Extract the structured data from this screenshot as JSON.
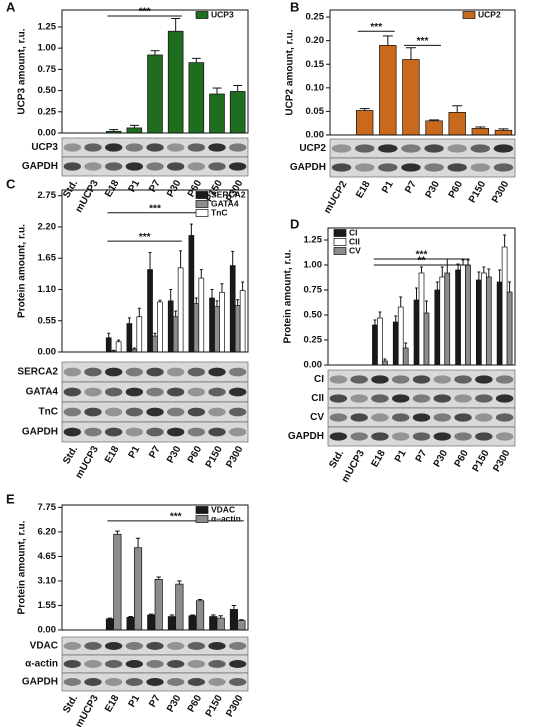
{
  "chart_data": [
    {
      "type": "bar",
      "panel": "A",
      "ylabel": "UCP3 amount, r.u.",
      "ylim": [
        0,
        1.45
      ],
      "yticks": [
        {
          "value": 0,
          "label": "0.00"
        },
        {
          "value": 0.25,
          "label": "0.25"
        },
        {
          "value": 0.5,
          "label": "0.50"
        },
        {
          "value": 0.75,
          "label": "0.75"
        },
        {
          "value": 1,
          "label": "1.00"
        },
        {
          "value": 1.25,
          "label": "1.25"
        }
      ],
      "legend": "upper right",
      "lanes": [
        "Std.",
        "mUCP3",
        "E18",
        "P1",
        "P7",
        "P30",
        "P60",
        "P150",
        "P300"
      ],
      "blots": [
        "UCP3",
        "GAPDH"
      ],
      "categories": [
        "E18",
        "P1",
        "P7",
        "P30",
        "P60",
        "P150",
        "P300"
      ],
      "series": [
        {
          "name": "UCP3",
          "color": "#1f6e1f",
          "values": [
            0.02,
            0.06,
            0.92,
            1.2,
            0.83,
            0.46,
            0.49
          ],
          "errors": [
            0.02,
            0.03,
            0.05,
            0.15,
            0.05,
            0.07,
            0.07
          ]
        }
      ],
      "annotations": [
        {
          "label": "***",
          "x": [
            "E18",
            "P30"
          ],
          "y": 1.38
        }
      ]
    },
    {
      "type": "bar",
      "panel": "B",
      "ylabel": "UCP2 amount, r.u.",
      "ylim": [
        0,
        0.265
      ],
      "yticks": [
        {
          "value": 0,
          "label": "0.00"
        },
        0.05,
        {
          "value": 0.1,
          "label": "0.10"
        },
        0.15,
        {
          "value": 0.2,
          "label": "0.20"
        },
        0.25
      ],
      "legend": "upper right",
      "lanes": [
        "mUCP2",
        "E18",
        "P1",
        "P7",
        "P30",
        "P60",
        "P150",
        "P300"
      ],
      "blots": [
        "UCP2",
        "GAPDH"
      ],
      "categories": [
        "E18",
        "P1",
        "P7",
        "P30",
        "P60",
        "P150",
        "P300"
      ],
      "series": [
        {
          "name": "UCP2",
          "color": "#c8691c",
          "values": [
            0.052,
            0.19,
            0.16,
            0.03,
            0.048,
            0.014,
            0.01
          ],
          "errors": [
            0.004,
            0.02,
            0.025,
            0.002,
            0.014,
            0.003,
            0.003
          ]
        }
      ],
      "annotations": [
        {
          "label": "***",
          "x": [
            "E18",
            "P1"
          ],
          "y": 0.22
        },
        {
          "label": "***",
          "x": [
            "P7",
            "P30"
          ],
          "y": 0.19
        }
      ]
    },
    {
      "type": "bar",
      "panel": "C",
      "ylabel": "Protein amount, r.u.",
      "ylim": [
        0,
        2.85
      ],
      "yticks": [
        {
          "value": 0,
          "label": "0.00"
        },
        0.55,
        {
          "value": 1.1,
          "label": "1.10"
        },
        1.65,
        {
          "value": 2.2,
          "label": "2.20"
        },
        2.75
      ],
      "legend": "upper right",
      "lanes": [
        "Std.",
        "mUCP3",
        "E18",
        "P1",
        "P7",
        "P30",
        "P60",
        "P150",
        "P300"
      ],
      "blots": [
        "SERCA2",
        "GATA4",
        "TnC",
        "GAPDH"
      ],
      "categories": [
        "E18",
        "P1",
        "P7",
        "P30",
        "P60",
        "P150",
        "P300"
      ],
      "series": [
        {
          "name": "SERCA2",
          "color": "#1a1a1a",
          "values": [
            0.25,
            0.5,
            1.45,
            0.9,
            2.05,
            0.95,
            1.52
          ],
          "errors": [
            0.08,
            0.1,
            0.3,
            0.2,
            0.2,
            0.15,
            0.25
          ]
        },
        {
          "name": "GATA4",
          "color": "#8c8c8c",
          "values": [
            0.02,
            0.05,
            0.28,
            0.62,
            0.85,
            0.8,
            0.82
          ],
          "errors": [
            0.01,
            0.02,
            0.05,
            0.1,
            0.1,
            0.1,
            0.1
          ]
        },
        {
          "name": "TnC",
          "color": "#ffffff",
          "values": [
            0.18,
            0.62,
            0.88,
            1.48,
            1.3,
            1.05,
            1.08
          ],
          "errors": [
            0.03,
            0.15,
            0.03,
            0.3,
            0.15,
            0.15,
            0.15
          ]
        }
      ],
      "annotations": [
        {
          "label": "***",
          "x": [
            "E18",
            "P60"
          ],
          "y": 2.45
        },
        {
          "label": "***",
          "x": [
            "E18",
            "P30"
          ],
          "y": 1.95
        }
      ]
    },
    {
      "type": "bar",
      "panel": "D",
      "ylabel": "Protein amount, r.u.",
      "ylim": [
        0,
        1.37
      ],
      "yticks": [
        {
          "value": 0,
          "label": "0.00"
        },
        0.25,
        {
          "value": 0.5,
          "label": "0.50"
        },
        0.75,
        {
          "value": 1,
          "label": "1.00"
        },
        1.25
      ],
      "legend": "upper left",
      "lanes": [
        "Std.",
        "mUCP3",
        "E18",
        "P1",
        "P7",
        "P30",
        "P60",
        "P150",
        "P300"
      ],
      "blots": [
        "CI",
        "CII",
        "CV",
        "GAPDH"
      ],
      "categories": [
        "E18",
        "P1",
        "P7",
        "P30",
        "P60",
        "P150",
        "P300"
      ],
      "series": [
        {
          "name": "CI",
          "color": "#1a1a1a",
          "values": [
            0.4,
            0.43,
            0.65,
            0.75,
            0.95,
            0.85,
            0.83
          ],
          "errors": [
            0.05,
            0.06,
            0.12,
            0.08,
            0.06,
            0.08,
            0.12
          ]
        },
        {
          "name": "CII",
          "color": "#ffffff",
          "values": [
            0.47,
            0.58,
            0.92,
            0.88,
            1.0,
            0.92,
            1.18
          ],
          "errors": [
            0.06,
            0.1,
            0.06,
            0.1,
            0.05,
            0.06,
            0.12
          ]
        },
        {
          "name": "CV",
          "color": "#8c8c8c",
          "values": [
            0.04,
            0.17,
            0.52,
            0.92,
            1.0,
            0.88,
            0.73
          ],
          "errors": [
            0.02,
            0.05,
            0.12,
            0.14,
            0.05,
            0.08,
            0.1
          ]
        }
      ],
      "annotations": [
        {
          "label": "***",
          "x": [
            "E18",
            "P60"
          ],
          "y": 1.06
        },
        {
          "label": "**",
          "x": [
            "E18",
            "P60"
          ],
          "y": 1.0
        }
      ]
    },
    {
      "type": "bar",
      "panel": "E",
      "ylabel": "Protein amount, r.u.",
      "ylim": [
        0,
        7.9
      ],
      "yticks": [
        {
          "value": 0,
          "label": "0.00"
        },
        1.55,
        {
          "value": 3.1,
          "label": "3.10"
        },
        4.65,
        {
          "value": 6.2,
          "label": "6.20"
        },
        7.75
      ],
      "legend": "upper right",
      "lanes": [
        "Std.",
        "mUCP3",
        "E18",
        "P1",
        "P7",
        "P30",
        "P60",
        "P150",
        "P300"
      ],
      "blots": [
        "VDAC",
        "α-actin",
        "GAPDH"
      ],
      "categories": [
        "E18",
        "P1",
        "P7",
        "P30",
        "P60",
        "P150",
        "P300"
      ],
      "series": [
        {
          "name": "VDAC",
          "color": "#1a1a1a",
          "values": [
            0.7,
            0.8,
            0.95,
            0.85,
            0.9,
            0.85,
            1.3
          ],
          "errors": [
            0.05,
            0.05,
            0.05,
            0.1,
            0.05,
            0.1,
            0.25
          ]
        },
        {
          "name": "α–actin",
          "color": "#8c8c8c",
          "values": [
            6.05,
            5.2,
            3.2,
            2.9,
            1.85,
            0.75,
            0.6
          ],
          "errors": [
            0.2,
            0.6,
            0.15,
            0.2,
            0.08,
            0.15,
            0.05
          ]
        }
      ],
      "annotations": [
        {
          "label": "***",
          "x": [
            "E18",
            "P300"
          ],
          "y": 6.9
        }
      ]
    }
  ]
}
